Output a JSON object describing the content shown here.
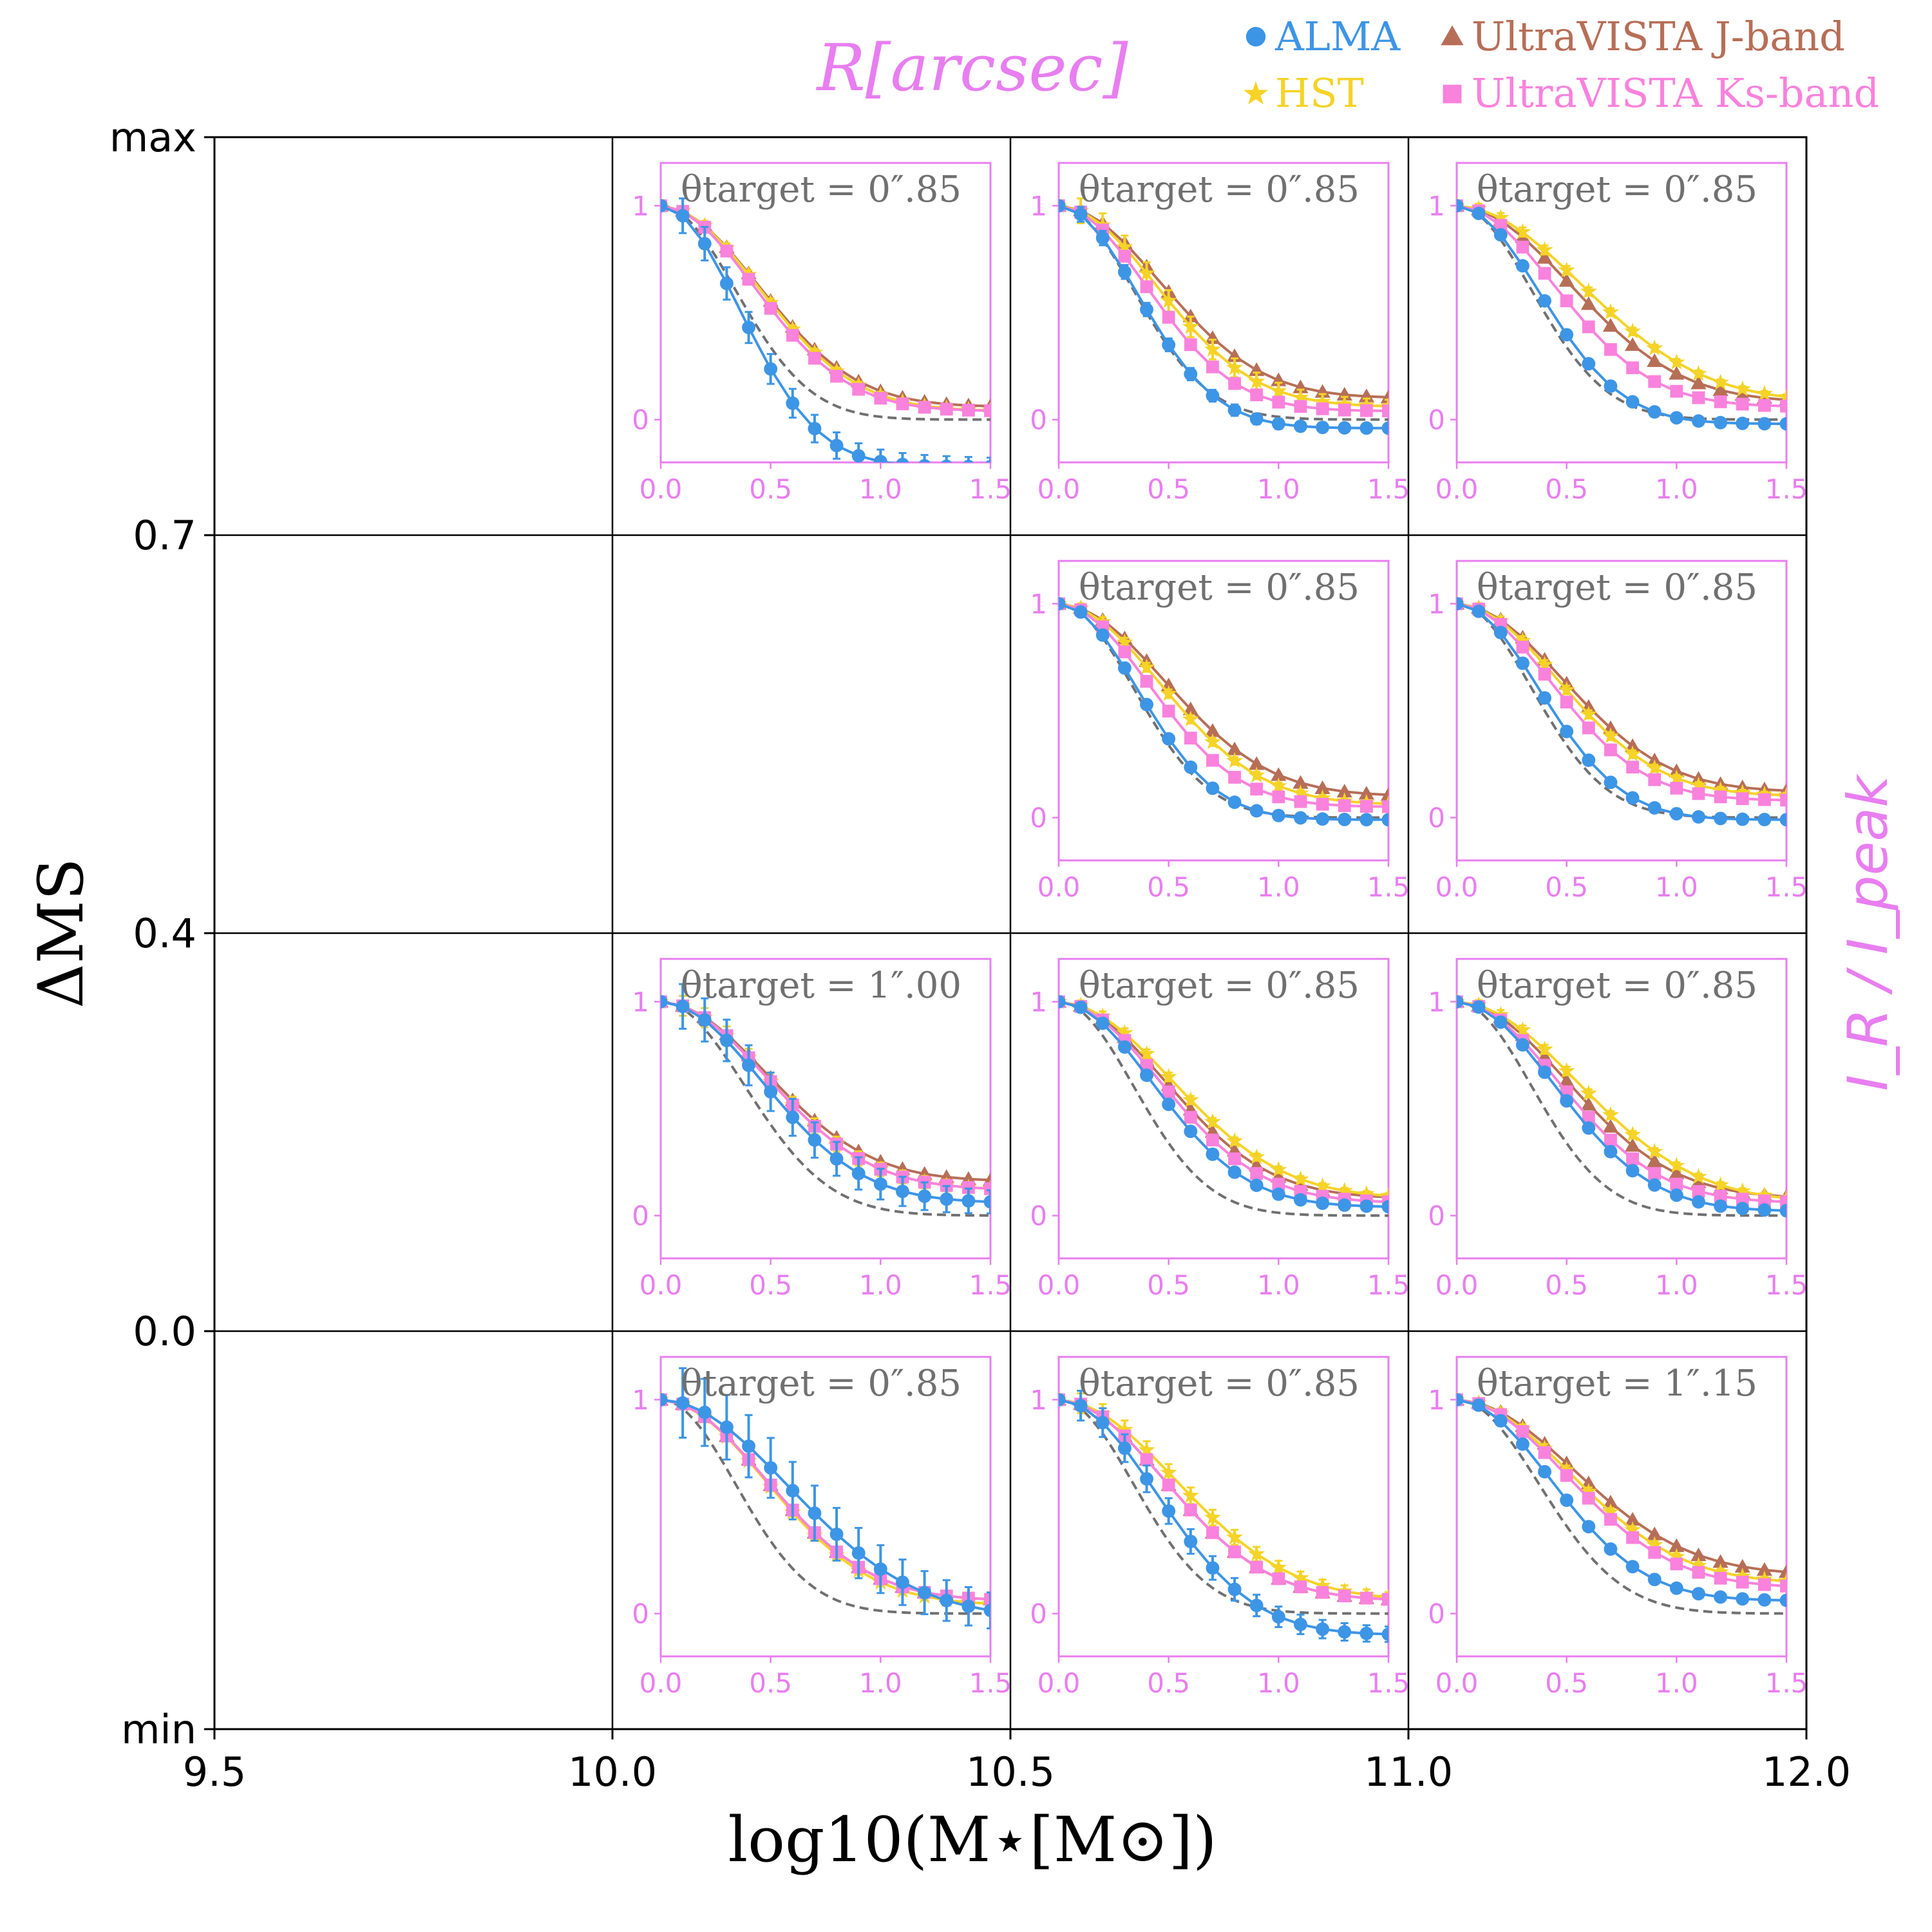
{
  "chart_data": {
    "type": "line",
    "title": "R[arcsec]",
    "xlabel": "log10(M⋆[M⊙])",
    "ylabel": "ΔMS",
    "right_label": "I_R / I_peak",
    "outer": {
      "x_ticks": [
        "9.5",
        "10.0",
        "10.5",
        "11.0",
        "12.0"
      ],
      "y_ticks": [
        "min",
        "0.0",
        "0.4",
        "0.7",
        "max"
      ]
    },
    "legend": {
      "placement": "top-right",
      "entries": [
        {
          "label": "ALMA",
          "color": "#3d95e6",
          "marker": "circle"
        },
        {
          "label": "HST",
          "color": "#f5d327",
          "marker": "star"
        },
        {
          "label": "UltraVISTA J-band",
          "color": "#b76e57",
          "marker": "triangle"
        },
        {
          "label": "UltraVISTA Ks-band",
          "color": "#f982dc",
          "marker": "square"
        }
      ]
    },
    "inset_axes": {
      "x_ticks": [
        "0.0",
        "0.5",
        "1.0",
        "1.5"
      ],
      "x_range": [
        0,
        1.5
      ],
      "y_ticks": [
        "0",
        "1"
      ],
      "y_range": [
        -0.2,
        1.2
      ]
    },
    "radius_grid": [
      0.0,
      0.1,
      0.2,
      0.3,
      0.4,
      0.5,
      0.6,
      0.7,
      0.8,
      0.9,
      1.0,
      1.1,
      1.2,
      1.3,
      1.4,
      1.5
    ],
    "panels": [
      {
        "row": 0,
        "col": 1,
        "label": "θtarget = 0″.85",
        "psf_w": 0.4,
        "alma": {
          "w": 0.42,
          "f": -0.22
        },
        "hst": {
          "w": 0.52,
          "f": 0.04
        },
        "jband": {
          "w": 0.52,
          "f": 0.06
        },
        "ksband": {
          "w": 0.5,
          "f": 0.04
        },
        "err_alma": 0.07,
        "err_hst": 0.02
      },
      {
        "row": 0,
        "col": 2,
        "label": "θtarget = 0″.85",
        "psf_w": 0.4,
        "alma": {
          "w": 0.42,
          "f": -0.04
        },
        "hst": {
          "w": 0.52,
          "f": 0.06
        },
        "jband": {
          "w": 0.54,
          "f": 0.1
        },
        "ksband": {
          "w": 0.47,
          "f": 0.04
        },
        "err_alma": 0.03,
        "err_hst": 0.05
      },
      {
        "row": 0,
        "col": 3,
        "label": "θtarget = 0″.85",
        "psf_w": 0.4,
        "alma": {
          "w": 0.44,
          "f": -0.02
        },
        "hst": {
          "w": 0.66,
          "f": 0.08
        },
        "jband": {
          "w": 0.6,
          "f": 0.08
        },
        "ksband": {
          "w": 0.52,
          "f": 0.06
        },
        "err_alma": 0.01,
        "err_hst": 0.02
      },
      {
        "row": 1,
        "col": 2,
        "label": "θtarget = 0″.85",
        "psf_w": 0.4,
        "alma": {
          "w": 0.42,
          "f": -0.01
        },
        "hst": {
          "w": 0.54,
          "f": 0.06
        },
        "jband": {
          "w": 0.56,
          "f": 0.1
        },
        "ksband": {
          "w": 0.48,
          "f": 0.05
        },
        "err_alma": 0.02,
        "err_hst": 0.02
      },
      {
        "row": 1,
        "col": 3,
        "label": "θtarget = 0″.85",
        "psf_w": 0.4,
        "alma": {
          "w": 0.44,
          "f": -0.01
        },
        "hst": {
          "w": 0.54,
          "f": 0.1
        },
        "jband": {
          "w": 0.56,
          "f": 0.12
        },
        "ksband": {
          "w": 0.5,
          "f": 0.08
        },
        "err_alma": 0.01,
        "err_hst": 0.02
      },
      {
        "row": 2,
        "col": 1,
        "label": "θtarget = 1″.00",
        "psf_w": 0.45,
        "alma": {
          "w": 0.54,
          "f": 0.06
        },
        "hst": {
          "w": 0.56,
          "f": 0.12
        },
        "jband": {
          "w": 0.56,
          "f": 0.16
        },
        "ksband": {
          "w": 0.56,
          "f": 0.12
        },
        "err_alma": 0.09,
        "err_hst": 0.04
      },
      {
        "row": 2,
        "col": 2,
        "label": "θtarget = 0″.85",
        "psf_w": 0.4,
        "alma": {
          "w": 0.5,
          "f": 0.04
        },
        "hst": {
          "w": 0.6,
          "f": 0.08
        },
        "jband": {
          "w": 0.56,
          "f": 0.08
        },
        "ksband": {
          "w": 0.54,
          "f": 0.06
        },
        "err_alma": 0.02,
        "err_hst": 0.02
      },
      {
        "row": 2,
        "col": 3,
        "label": "θtarget = 0″.85",
        "psf_w": 0.4,
        "alma": {
          "w": 0.52,
          "f": 0.02
        },
        "hst": {
          "w": 0.64,
          "f": 0.06
        },
        "jband": {
          "w": 0.58,
          "f": 0.08
        },
        "ksband": {
          "w": 0.54,
          "f": 0.06
        },
        "err_alma": 0.02,
        "err_hst": 0.02
      },
      {
        "row": 3,
        "col": 1,
        "label": "θtarget = 0″.85",
        "psf_w": 0.4,
        "alma": {
          "w": 0.68,
          "f": -0.02
        },
        "hst": {
          "w": 0.56,
          "f": 0.04
        },
        "jband": {
          "w": 0.56,
          "f": 0.06
        },
        "ksband": {
          "w": 0.56,
          "f": 0.06
        },
        "err_alma": 0.14,
        "err_hst": 0.02
      },
      {
        "row": 3,
        "col": 2,
        "label": "θtarget = 0″.85",
        "psf_w": 0.4,
        "alma": {
          "w": 0.52,
          "f": -0.1
        },
        "hst": {
          "w": 0.62,
          "f": 0.06
        },
        "jband": {
          "w": 0.56,
          "f": 0.06
        },
        "ksband": {
          "w": 0.56,
          "f": 0.06
        },
        "err_alma": 0.06,
        "err_hst": 0.04
      },
      {
        "row": 3,
        "col": 3,
        "label": "θtarget = 1″.15",
        "psf_w": 0.44,
        "alma": {
          "w": 0.5,
          "f": 0.06
        },
        "hst": {
          "w": 0.6,
          "f": 0.14
        },
        "jband": {
          "w": 0.62,
          "f": 0.18
        },
        "ksband": {
          "w": 0.58,
          "f": 0.12
        },
        "err_alma": 0.02,
        "err_hst": 0.02
      }
    ]
  }
}
